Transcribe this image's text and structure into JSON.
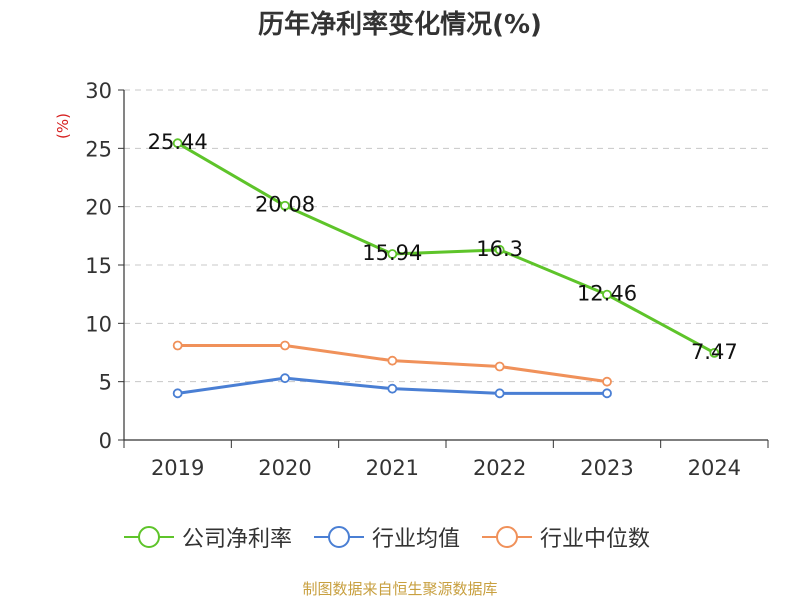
{
  "chart_data": {
    "type": "line",
    "title": "历年净利率变化情况(%)",
    "ylabel": "(%)",
    "xlabel": "",
    "categories": [
      "2019",
      "2020",
      "2021",
      "2022",
      "2023",
      "2024"
    ],
    "ylim": [
      0,
      30
    ],
    "yticks": [
      0,
      5,
      10,
      15,
      20,
      25,
      30
    ],
    "grid": true,
    "legend_position": "bottom",
    "series": [
      {
        "name": "公司净利率",
        "color": "#5ec42a",
        "labels": true,
        "values": [
          25.44,
          20.08,
          15.94,
          16.3,
          12.46,
          7.47
        ],
        "value_labels": [
          "25.44",
          "20.08",
          "15.94",
          "16.3",
          "12.46",
          "7.47"
        ]
      },
      {
        "name": "行业均值",
        "color": "#4a7fd4",
        "labels": false,
        "values": [
          4.0,
          5.3,
          4.4,
          4.0,
          4.0,
          null
        ]
      },
      {
        "name": "行业中位数",
        "color": "#f0915a",
        "labels": false,
        "values": [
          8.1,
          8.1,
          6.8,
          6.3,
          5.0,
          null
        ]
      }
    ]
  },
  "source": "制图数据来自恒生聚源数据库"
}
